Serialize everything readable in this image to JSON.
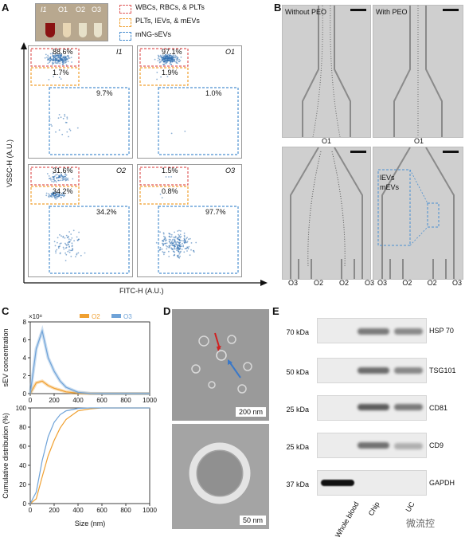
{
  "panels": {
    "A": {
      "letter": "A",
      "tubes": [
        "I1",
        "O1",
        "O2",
        "O3"
      ],
      "legend": [
        "WBCs, RBCs, & PLTs",
        "PLTs, IEVs, & mEVs",
        "mNG-sEVs"
      ],
      "legend_colors": [
        "#e05a5a",
        "#f0a030",
        "#4a8fd0"
      ],
      "ylabel": "VSSC-H (A.U.)",
      "xlabel": "FITC-H (A.U.)",
      "plots": [
        {
          "name": "I1",
          "pcts": [
            "88.6%",
            "1.7%",
            "9.7%"
          ]
        },
        {
          "name": "O1",
          "pcts": [
            "97.1%",
            "1.9%",
            "1.0%"
          ]
        },
        {
          "name": "O2",
          "pcts": [
            "31.6%",
            "34.2%",
            "34.2%"
          ]
        },
        {
          "name": "O3",
          "pcts": [
            "1.5%",
            "0.8%",
            "97.7%"
          ]
        }
      ]
    },
    "B": {
      "letter": "B",
      "left_label": "Without PEO",
      "right_label": "With PEO",
      "top_outlet": "O1",
      "inset_label": "lEVs mEVs",
      "outlets": [
        "O3",
        "O2",
        "O2",
        "O3"
      ]
    },
    "C": {
      "letter": "C",
      "exponent": "×10⁸",
      "legend": [
        "O2",
        "O3"
      ],
      "ylabel_top": "sEV concentration",
      "ylabel_bottom": "Cumulative distribution (%)",
      "xlabel": "Size (nm)",
      "x_ticks": [
        "0",
        "200",
        "400",
        "600",
        "800",
        "1000"
      ],
      "y_ticks_top": [
        "0",
        "2",
        "4",
        "6",
        "8"
      ],
      "y_ticks_bottom": [
        "0",
        "20",
        "40",
        "60",
        "80",
        "100"
      ]
    },
    "D": {
      "letter": "D",
      "scale_top": "200 nm",
      "scale_bottom": "50 nm"
    },
    "E": {
      "letter": "E",
      "rows": [
        {
          "kda": "70 kDa",
          "protein": "HSP 70"
        },
        {
          "kda": "50 kDa",
          "protein": "TSG101"
        },
        {
          "kda": "25 kDa",
          "protein": "CD81"
        },
        {
          "kda": "25 kDa",
          "protein": "CD9"
        },
        {
          "kda": "37 kDa",
          "protein": "GAPDH"
        }
      ],
      "lanes": [
        "Whole blood",
        "Chip",
        "UC"
      ]
    },
    "watermark": "微流控"
  },
  "chart_data": [
    {
      "type": "line",
      "title": "",
      "xlabel": "",
      "ylabel": "sEV concentration",
      "x": [
        0,
        50,
        100,
        150,
        200,
        250,
        300,
        400,
        500,
        600,
        800,
        1000
      ],
      "series": [
        {
          "name": "O2",
          "values": [
            0,
            1.2,
            1.4,
            0.9,
            0.6,
            0.4,
            0.2,
            0.05,
            0,
            0,
            0,
            0
          ]
        },
        {
          "name": "O3",
          "values": [
            0,
            5.0,
            7.0,
            4.0,
            2.5,
            1.4,
            0.7,
            0.15,
            0.02,
            0,
            0,
            0
          ]
        }
      ],
      "xlim": [
        0,
        1000
      ],
      "ylim": [
        0,
        8
      ]
    },
    {
      "type": "line",
      "title": "",
      "xlabel": "Size (nm)",
      "ylabel": "Cumulative distribution (%)",
      "x": [
        0,
        50,
        100,
        150,
        200,
        250,
        300,
        400,
        500,
        600,
        800,
        1000
      ],
      "series": [
        {
          "name": "O2",
          "values": [
            0,
            5,
            28,
            50,
            66,
            79,
            88,
            97,
            99,
            100,
            100,
            100
          ]
        },
        {
          "name": "O3",
          "values": [
            0,
            12,
            45,
            70,
            85,
            93,
            97,
            99.5,
            100,
            100,
            100,
            100
          ]
        }
      ],
      "xlim": [
        0,
        1000
      ],
      "ylim": [
        0,
        100
      ]
    }
  ]
}
